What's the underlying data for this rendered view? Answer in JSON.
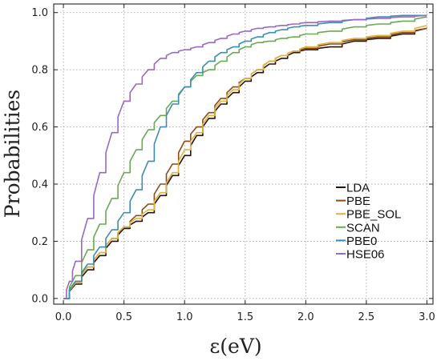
{
  "chart_data": {
    "type": "line",
    "title": "",
    "xlabel": "ε(eV)",
    "ylabel": "Probabilities",
    "xlim": [
      -0.08,
      3.05
    ],
    "ylim": [
      -0.02,
      1.03
    ],
    "xticks": [
      "0.0",
      "0.5",
      "1.0",
      "1.5",
      "2.0",
      "2.5",
      "3.0"
    ],
    "yticks": [
      "0.0",
      "0.2",
      "0.4",
      "0.6",
      "0.8",
      "1.0"
    ],
    "grid": true,
    "legend_position": "right",
    "series": [
      {
        "name": "LDA",
        "color": "#2a1208",
        "x": [
          0.0,
          0.1,
          0.2,
          0.3,
          0.4,
          0.5,
          0.6,
          0.7,
          0.8,
          0.9,
          1.0,
          1.1,
          1.2,
          1.3,
          1.4,
          1.5,
          1.6,
          1.7,
          1.8,
          1.9,
          2.0,
          2.2,
          2.4,
          2.6,
          2.8,
          3.0
        ],
        "y": [
          0.0,
          0.05,
          0.1,
          0.15,
          0.2,
          0.245,
          0.27,
          0.3,
          0.36,
          0.43,
          0.5,
          0.57,
          0.63,
          0.68,
          0.72,
          0.76,
          0.79,
          0.82,
          0.84,
          0.86,
          0.87,
          0.88,
          0.9,
          0.91,
          0.925,
          0.945
        ]
      },
      {
        "name": "PBE",
        "color": "#8b4a1c",
        "x": [
          0.0,
          0.1,
          0.2,
          0.3,
          0.4,
          0.5,
          0.6,
          0.7,
          0.8,
          0.9,
          1.0,
          1.1,
          1.2,
          1.3,
          1.4,
          1.5,
          1.6,
          1.7,
          1.8,
          1.9,
          2.0,
          2.2,
          2.4,
          2.6,
          2.8,
          3.0
        ],
        "y": [
          0.0,
          0.06,
          0.11,
          0.16,
          0.21,
          0.25,
          0.29,
          0.33,
          0.4,
          0.47,
          0.55,
          0.6,
          0.65,
          0.7,
          0.74,
          0.77,
          0.8,
          0.83,
          0.85,
          0.865,
          0.875,
          0.89,
          0.905,
          0.915,
          0.93,
          0.945
        ]
      },
      {
        "name": "PBE_SOL",
        "color": "#e0b43c",
        "x": [
          0.0,
          0.1,
          0.2,
          0.3,
          0.4,
          0.5,
          0.6,
          0.7,
          0.8,
          0.9,
          1.0,
          1.1,
          1.2,
          1.3,
          1.4,
          1.5,
          1.6,
          1.7,
          1.8,
          1.9,
          2.0,
          2.2,
          2.4,
          2.6,
          2.8,
          3.0
        ],
        "y": [
          0.0,
          0.055,
          0.11,
          0.16,
          0.21,
          0.25,
          0.28,
          0.31,
          0.37,
          0.44,
          0.52,
          0.58,
          0.64,
          0.69,
          0.73,
          0.77,
          0.8,
          0.83,
          0.85,
          0.865,
          0.88,
          0.895,
          0.91,
          0.92,
          0.935,
          0.955
        ]
      },
      {
        "name": "SCAN",
        "color": "#6aaa52",
        "x": [
          0.0,
          0.1,
          0.2,
          0.3,
          0.4,
          0.5,
          0.6,
          0.7,
          0.8,
          0.9,
          1.0,
          1.1,
          1.2,
          1.3,
          1.4,
          1.5,
          1.6,
          1.7,
          1.8,
          1.9,
          2.0,
          2.2,
          2.4,
          2.6,
          2.8,
          3.0
        ],
        "y": [
          0.0,
          0.08,
          0.17,
          0.26,
          0.35,
          0.44,
          0.52,
          0.59,
          0.64,
          0.69,
          0.74,
          0.78,
          0.8,
          0.83,
          0.86,
          0.88,
          0.895,
          0.9,
          0.91,
          0.915,
          0.925,
          0.935,
          0.95,
          0.96,
          0.97,
          0.985
        ]
      },
      {
        "name": "PBE0",
        "color": "#3d8db2",
        "x": [
          0.0,
          0.1,
          0.2,
          0.3,
          0.4,
          0.5,
          0.6,
          0.7,
          0.8,
          0.9,
          1.0,
          1.1,
          1.2,
          1.3,
          1.4,
          1.5,
          1.6,
          1.7,
          1.8,
          1.9,
          2.0,
          2.2,
          2.4,
          2.6,
          2.8,
          3.0
        ],
        "y": [
          0.0,
          0.06,
          0.12,
          0.18,
          0.24,
          0.3,
          0.38,
          0.48,
          0.6,
          0.68,
          0.74,
          0.79,
          0.83,
          0.86,
          0.88,
          0.9,
          0.915,
          0.93,
          0.94,
          0.95,
          0.955,
          0.965,
          0.975,
          0.985,
          0.99,
          0.99
        ]
      },
      {
        "name": "HSE06",
        "color": "#9a68c4",
        "x": [
          0.0,
          0.05,
          0.1,
          0.2,
          0.3,
          0.4,
          0.5,
          0.6,
          0.7,
          0.8,
          0.9,
          1.0,
          1.1,
          1.2,
          1.3,
          1.4,
          1.5,
          1.6,
          1.7,
          1.8,
          1.9,
          2.0,
          2.2,
          2.4,
          2.6,
          2.8,
          3.0
        ],
        "y": [
          0.0,
          0.06,
          0.13,
          0.28,
          0.44,
          0.58,
          0.69,
          0.75,
          0.8,
          0.84,
          0.86,
          0.87,
          0.88,
          0.895,
          0.91,
          0.925,
          0.935,
          0.945,
          0.95,
          0.955,
          0.96,
          0.965,
          0.97,
          0.975,
          0.98,
          0.985,
          0.99
        ]
      }
    ]
  }
}
